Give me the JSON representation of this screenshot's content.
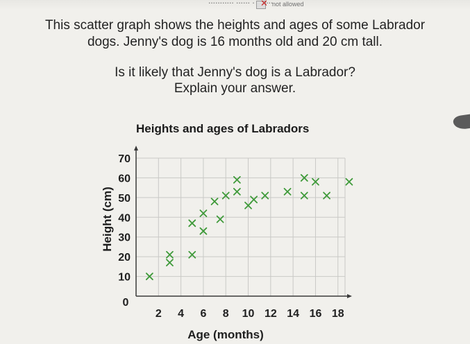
{
  "header": {
    "cutoff_text": "........... ...... . . .....",
    "not_allowed_label": "not allowed"
  },
  "question": {
    "line1": "This scatter graph shows the heights and ages of some Labrador",
    "line2": "dogs. Jenny's dog is 16 months old and 20 cm tall.",
    "line3": "Is it likely that Jenny's dog is a Labrador?",
    "line4": "Explain your answer."
  },
  "colors": {
    "marker": "#3f9a3a",
    "grid": "#c9c9c6",
    "axis": "#3a3a3a",
    "text": "#1f1f1f"
  },
  "chart_data": {
    "type": "scatter",
    "title": "Heights and ages of Labradors",
    "xlabel": "Age (months)",
    "ylabel": "Height (cm)",
    "xlim": [
      0,
      19
    ],
    "ylim": [
      0,
      75
    ],
    "xticks": [
      0,
      2,
      4,
      6,
      8,
      10,
      12,
      14,
      16,
      18
    ],
    "yticks": [
      10,
      20,
      30,
      40,
      50,
      60,
      70
    ],
    "grid": true,
    "marker": "x",
    "points": [
      {
        "x": 1.2,
        "y": 10
      },
      {
        "x": 3.0,
        "y": 17
      },
      {
        "x": 3.0,
        "y": 21
      },
      {
        "x": 5.0,
        "y": 21
      },
      {
        "x": 5.0,
        "y": 37
      },
      {
        "x": 6.0,
        "y": 33
      },
      {
        "x": 6.0,
        "y": 42
      },
      {
        "x": 7.0,
        "y": 48
      },
      {
        "x": 7.5,
        "y": 39
      },
      {
        "x": 8.0,
        "y": 51
      },
      {
        "x": 9.0,
        "y": 53
      },
      {
        "x": 9.0,
        "y": 59
      },
      {
        "x": 10.0,
        "y": 46
      },
      {
        "x": 10.5,
        "y": 49
      },
      {
        "x": 11.5,
        "y": 51
      },
      {
        "x": 13.5,
        "y": 53
      },
      {
        "x": 15.0,
        "y": 51
      },
      {
        "x": 15.0,
        "y": 60
      },
      {
        "x": 16.0,
        "y": 58
      },
      {
        "x": 17.0,
        "y": 51
      },
      {
        "x": 19.0,
        "y": 58
      }
    ]
  }
}
